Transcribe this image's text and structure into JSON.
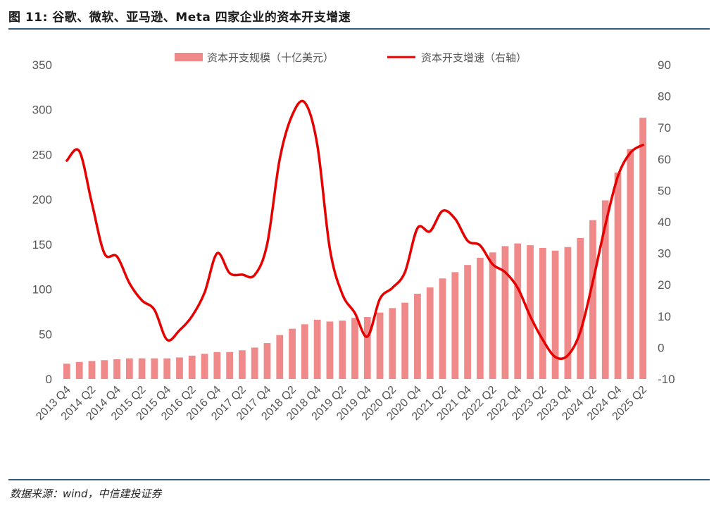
{
  "header": {
    "title": "图 11: 谷歌、微软、亚马逊、Meta 四家企业的资本开支增速"
  },
  "footer": {
    "source": "数据来源：wind，中信建投证券"
  },
  "colors": {
    "bar": "#f08a8a",
    "line": "#e60000",
    "rule": "#2f5d7c"
  },
  "chart_data": {
    "type": "bar",
    "title": "图 11: 谷歌、微软、亚马逊、Meta 四家企业的资本开支增速",
    "legend_position": "top-center",
    "grid": false,
    "categories": [
      "2013 Q4",
      "2014 Q1",
      "2014 Q2",
      "2014 Q3",
      "2014 Q4",
      "2015 Q1",
      "2015 Q2",
      "2015 Q3",
      "2015 Q4",
      "2016 Q1",
      "2016 Q2",
      "2016 Q3",
      "2016 Q4",
      "2017 Q1",
      "2017 Q2",
      "2017 Q3",
      "2017 Q4",
      "2018 Q1",
      "2018 Q2",
      "2018 Q3",
      "2018 Q4",
      "2019 Q1",
      "2019 Q2",
      "2019 Q3",
      "2019 Q4",
      "2020 Q1",
      "2020 Q2",
      "2020 Q3",
      "2020 Q4",
      "2021 Q1",
      "2021 Q2",
      "2021 Q3",
      "2021 Q4",
      "2022 Q1",
      "2022 Q2",
      "2022 Q3",
      "2022 Q4",
      "2023 Q1",
      "2023 Q2",
      "2023 Q3",
      "2023 Q4",
      "2024 Q1",
      "2024 Q2",
      "2024 Q3",
      "2024 Q4",
      "2025 Q1",
      "2025 Q2"
    ],
    "x_tick_labels": [
      "2013 Q4",
      "2014 Q2",
      "2014 Q4",
      "2015 Q2",
      "2015 Q4",
      "2016 Q2",
      "2016 Q4",
      "2017 Q2",
      "2017 Q4",
      "2018 Q2",
      "2018 Q4",
      "2019 Q2",
      "2019 Q4",
      "2020 Q2",
      "2020 Q4",
      "2021 Q2",
      "2021 Q4",
      "2022 Q2",
      "2022 Q4",
      "2023 Q2",
      "2023 Q4",
      "2024 Q2",
      "2024 Q4",
      "2025 Q2"
    ],
    "y_left": {
      "min": 0,
      "max": 350,
      "ticks": [
        0,
        50,
        100,
        150,
        200,
        250,
        300,
        350
      ]
    },
    "y_right": {
      "min": -10,
      "max": 90,
      "ticks": [
        -10,
        0,
        10,
        20,
        30,
        40,
        50,
        60,
        70,
        80,
        90
      ]
    },
    "series": [
      {
        "name": "资本开支规模（十亿美元）",
        "type": "bar",
        "axis": "left",
        "values": [
          17,
          19,
          20,
          21,
          22,
          23,
          23,
          23,
          23,
          24,
          26,
          28,
          30,
          30,
          32,
          35,
          40,
          49,
          56,
          61,
          66,
          64,
          65,
          68,
          69,
          74,
          79,
          85,
          95,
          102,
          112,
          119,
          127,
          135,
          141,
          148,
          151,
          149,
          146,
          143,
          147,
          157,
          177,
          199,
          230,
          256,
          291
        ]
      },
      {
        "name": "资本开支增速（右轴）",
        "type": "line",
        "axis": "right",
        "values": [
          59.5,
          62.5,
          46,
          30,
          29,
          20.5,
          15,
          12,
          2.5,
          5.5,
          10,
          17.5,
          30,
          23.7,
          23.2,
          23.1,
          33,
          60,
          74,
          78,
          64.5,
          31.5,
          17,
          11,
          3.5,
          15.5,
          19,
          24,
          38,
          37,
          43.5,
          41,
          34,
          32.5,
          26.5,
          24,
          19,
          10,
          2.5,
          -3,
          -2.5,
          5,
          21,
          39,
          54.5,
          62,
          64.5
        ]
      }
    ]
  }
}
